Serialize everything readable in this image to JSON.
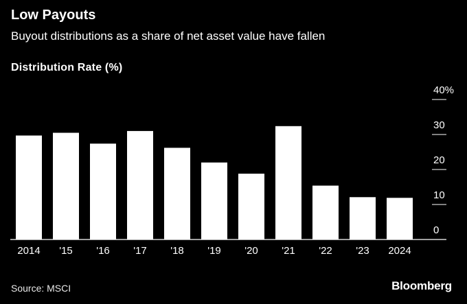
{
  "header": {
    "title": "Low Payouts",
    "subtitle": "Buyout distributions as a share of net asset value have fallen"
  },
  "footer": {
    "source": "Source: MSCI",
    "brand": "Bloomberg"
  },
  "colors": {
    "background": "#000000",
    "bar": "#ffffff",
    "text": "#ffffff",
    "grid": "#ffffff"
  },
  "chart_data": {
    "type": "bar",
    "title": "Low Payouts",
    "subtitle": "Buyout distributions as a share of net asset value have fallen",
    "ylabel": "Distribution Rate (%)",
    "xlabel": "",
    "categories": [
      "2014",
      "'15",
      "'16",
      "'17",
      "'18",
      "'19",
      "'20",
      "'21",
      "'22",
      "'23",
      "2024"
    ],
    "values": [
      29.7,
      30.5,
      27.4,
      31.0,
      26.2,
      22.0,
      18.8,
      32.4,
      15.4,
      12.1,
      11.9
    ],
    "ylim": [
      0,
      40
    ],
    "yticks": [
      0,
      10,
      20,
      30,
      40
    ],
    "ytick_labels": [
      "0",
      "10",
      "20",
      "30",
      "40%"
    ],
    "y_axis_position": "right",
    "grid": false,
    "legend": "none"
  }
}
